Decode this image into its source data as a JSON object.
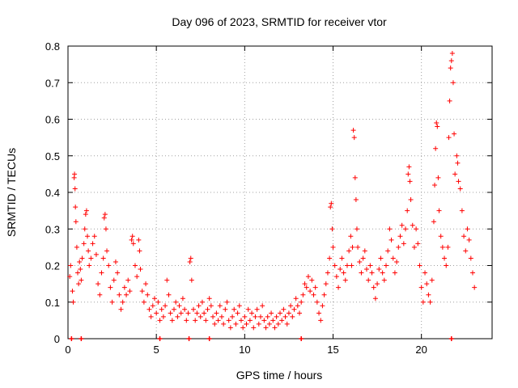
{
  "chart_data": {
    "type": "scatter",
    "title": "Day 096 of 2023, SRMTID for receiver vtor",
    "xlabel": "GPS time / hours",
    "ylabel": "SRMTID / TECUs",
    "xlim": [
      0,
      24
    ],
    "ylim": [
      0,
      0.8
    ],
    "grid": true,
    "marker": "+",
    "color": "#ff0000",
    "x_ticks": [
      0,
      5,
      10,
      15,
      20
    ],
    "x_tick_labels": [
      "0",
      "5",
      "10",
      "15",
      "20"
    ],
    "y_ticks": [
      0,
      0.1,
      0.2,
      0.3,
      0.4,
      0.5,
      0.6,
      0.7,
      0.8
    ],
    "y_tick_labels": [
      "0",
      "0.1",
      "0.2",
      "0.3",
      "0.4",
      "0.5",
      "0.6",
      "0.7",
      "0.8"
    ],
    "series": [
      {
        "name": "SRMTID",
        "points": [
          [
            0.1,
            0.17
          ],
          [
            0.15,
            0.2
          ],
          [
            0.25,
            0.13
          ],
          [
            0.3,
            0.1
          ],
          [
            0.35,
            0.44
          ],
          [
            0.37,
            0.45
          ],
          [
            0.4,
            0.41
          ],
          [
            0.42,
            0.36
          ],
          [
            0.45,
            0.32
          ],
          [
            0.5,
            0.25
          ],
          [
            0.55,
            0.18
          ],
          [
            0.6,
            0.15
          ],
          [
            0.65,
            0.21
          ],
          [
            0.7,
            0.19
          ],
          [
            0.75,
            0.16
          ],
          [
            0.8,
            0.22
          ],
          [
            0.9,
            0.26
          ],
          [
            0.95,
            0.3
          ],
          [
            1.0,
            0.34
          ],
          [
            1.05,
            0.35
          ],
          [
            1.1,
            0.28
          ],
          [
            1.15,
            0.24
          ],
          [
            1.2,
            0.2
          ],
          [
            1.3,
            0.22
          ],
          [
            1.4,
            0.26
          ],
          [
            1.5,
            0.28
          ],
          [
            1.6,
            0.23
          ],
          [
            1.7,
            0.15
          ],
          [
            1.8,
            0.12
          ],
          [
            1.9,
            0.18
          ],
          [
            2.0,
            0.22
          ],
          [
            2.05,
            0.33
          ],
          [
            2.1,
            0.34
          ],
          [
            2.15,
            0.3
          ],
          [
            2.2,
            0.24
          ],
          [
            2.3,
            0.2
          ],
          [
            2.4,
            0.14
          ],
          [
            2.5,
            0.1
          ],
          [
            2.6,
            0.16
          ],
          [
            2.7,
            0.21
          ],
          [
            2.8,
            0.18
          ],
          [
            2.9,
            0.12
          ],
          [
            3.0,
            0.08
          ],
          [
            3.1,
            0.1
          ],
          [
            3.2,
            0.14
          ],
          [
            3.3,
            0.12
          ],
          [
            3.4,
            0.16
          ],
          [
            3.5,
            0.13
          ],
          [
            3.6,
            0.27
          ],
          [
            3.65,
            0.28
          ],
          [
            3.7,
            0.26
          ],
          [
            3.8,
            0.2
          ],
          [
            3.9,
            0.17
          ],
          [
            4.0,
            0.27
          ],
          [
            4.05,
            0.24
          ],
          [
            4.1,
            0.19
          ],
          [
            4.2,
            0.13
          ],
          [
            4.3,
            0.1
          ],
          [
            4.4,
            0.15
          ],
          [
            4.5,
            0.12
          ],
          [
            4.6,
            0.08
          ],
          [
            4.7,
            0.06
          ],
          [
            4.8,
            0.09
          ],
          [
            4.9,
            0.11
          ],
          [
            5.0,
            0.07
          ],
          [
            5.1,
            0.1
          ],
          [
            5.2,
            0.05
          ],
          [
            5.3,
            0.08
          ],
          [
            5.4,
            0.06
          ],
          [
            5.5,
            0.09
          ],
          [
            5.6,
            0.16
          ],
          [
            5.7,
            0.12
          ],
          [
            5.8,
            0.07
          ],
          [
            5.9,
            0.05
          ],
          [
            6.0,
            0.08
          ],
          [
            6.1,
            0.1
          ],
          [
            6.2,
            0.06
          ],
          [
            6.3,
            0.09
          ],
          [
            6.4,
            0.07
          ],
          [
            6.5,
            0.11
          ],
          [
            6.6,
            0.08
          ],
          [
            6.7,
            0.05
          ],
          [
            6.8,
            0.07
          ],
          [
            6.9,
            0.21
          ],
          [
            6.95,
            0.22
          ],
          [
            7.0,
            0.16
          ],
          [
            7.1,
            0.08
          ],
          [
            7.2,
            0.05
          ],
          [
            7.3,
            0.07
          ],
          [
            7.4,
            0.09
          ],
          [
            7.5,
            0.06
          ],
          [
            7.6,
            0.1
          ],
          [
            7.7,
            0.07
          ],
          [
            7.8,
            0.05
          ],
          [
            7.9,
            0.08
          ],
          [
            8.0,
            0.11
          ],
          [
            8.1,
            0.09
          ],
          [
            8.2,
            0.06
          ],
          [
            8.3,
            0.04
          ],
          [
            8.4,
            0.07
          ],
          [
            8.5,
            0.05
          ],
          [
            8.6,
            0.09
          ],
          [
            8.7,
            0.06
          ],
          [
            8.8,
            0.04
          ],
          [
            8.9,
            0.08
          ],
          [
            9.0,
            0.1
          ],
          [
            9.1,
            0.05
          ],
          [
            9.2,
            0.03
          ],
          [
            9.3,
            0.06
          ],
          [
            9.4,
            0.08
          ],
          [
            9.5,
            0.04
          ],
          [
            9.6,
            0.07
          ],
          [
            9.7,
            0.09
          ],
          [
            9.8,
            0.05
          ],
          [
            9.9,
            0.03
          ],
          [
            10.0,
            0.06
          ],
          [
            10.1,
            0.04
          ],
          [
            10.2,
            0.08
          ],
          [
            10.3,
            0.05
          ],
          [
            10.4,
            0.07
          ],
          [
            10.5,
            0.03
          ],
          [
            10.6,
            0.06
          ],
          [
            10.7,
            0.08
          ],
          [
            10.8,
            0.04
          ],
          [
            10.9,
            0.06
          ],
          [
            11.0,
            0.09
          ],
          [
            11.1,
            0.05
          ],
          [
            11.2,
            0.03
          ],
          [
            11.3,
            0.06
          ],
          [
            11.4,
            0.04
          ],
          [
            11.5,
            0.07
          ],
          [
            11.6,
            0.05
          ],
          [
            11.7,
            0.03
          ],
          [
            11.8,
            0.06
          ],
          [
            11.9,
            0.04
          ],
          [
            12.0,
            0.07
          ],
          [
            12.1,
            0.05
          ],
          [
            12.2,
            0.08
          ],
          [
            12.3,
            0.06
          ],
          [
            12.4,
            0.04
          ],
          [
            12.5,
            0.07
          ],
          [
            12.6,
            0.09
          ],
          [
            12.7,
            0.06
          ],
          [
            12.8,
            0.08
          ],
          [
            12.9,
            0.11
          ],
          [
            13.0,
            0.09
          ],
          [
            13.1,
            0.07
          ],
          [
            13.2,
            0.1
          ],
          [
            13.3,
            0.12
          ],
          [
            13.4,
            0.15
          ],
          [
            13.5,
            0.14
          ],
          [
            13.6,
            0.17
          ],
          [
            13.7,
            0.13
          ],
          [
            13.8,
            0.16
          ],
          [
            13.9,
            0.12
          ],
          [
            14.0,
            0.14
          ],
          [
            14.1,
            0.1
          ],
          [
            14.2,
            0.07
          ],
          [
            14.3,
            0.05
          ],
          [
            14.4,
            0.09
          ],
          [
            14.5,
            0.12
          ],
          [
            14.6,
            0.15
          ],
          [
            14.7,
            0.18
          ],
          [
            14.8,
            0.22
          ],
          [
            14.85,
            0.36
          ],
          [
            14.9,
            0.37
          ],
          [
            14.95,
            0.3
          ],
          [
            15.0,
            0.25
          ],
          [
            15.1,
            0.2
          ],
          [
            15.2,
            0.17
          ],
          [
            15.3,
            0.14
          ],
          [
            15.4,
            0.19
          ],
          [
            15.5,
            0.22
          ],
          [
            15.6,
            0.18
          ],
          [
            15.7,
            0.16
          ],
          [
            15.8,
            0.2
          ],
          [
            15.9,
            0.24
          ],
          [
            16.0,
            0.28
          ],
          [
            16.05,
            0.2
          ],
          [
            16.1,
            0.25
          ],
          [
            16.15,
            0.57
          ],
          [
            16.2,
            0.55
          ],
          [
            16.25,
            0.44
          ],
          [
            16.3,
            0.38
          ],
          [
            16.35,
            0.3
          ],
          [
            16.4,
            0.25
          ],
          [
            16.5,
            0.21
          ],
          [
            16.6,
            0.18
          ],
          [
            16.7,
            0.22
          ],
          [
            16.8,
            0.24
          ],
          [
            16.9,
            0.19
          ],
          [
            17.0,
            0.16
          ],
          [
            17.1,
            0.2
          ],
          [
            17.2,
            0.18
          ],
          [
            17.3,
            0.14
          ],
          [
            17.4,
            0.11
          ],
          [
            17.5,
            0.15
          ],
          [
            17.6,
            0.19
          ],
          [
            17.7,
            0.22
          ],
          [
            17.8,
            0.18
          ],
          [
            17.9,
            0.16
          ],
          [
            18.0,
            0.2
          ],
          [
            18.1,
            0.24
          ],
          [
            18.2,
            0.3
          ],
          [
            18.3,
            0.27
          ],
          [
            18.4,
            0.22
          ],
          [
            18.5,
            0.18
          ],
          [
            18.6,
            0.21
          ],
          [
            18.7,
            0.25
          ],
          [
            18.8,
            0.28
          ],
          [
            18.9,
            0.31
          ],
          [
            19.0,
            0.26
          ],
          [
            19.1,
            0.3
          ],
          [
            19.2,
            0.35
          ],
          [
            19.25,
            0.45
          ],
          [
            19.3,
            0.47
          ],
          [
            19.35,
            0.43
          ],
          [
            19.4,
            0.38
          ],
          [
            19.5,
            0.31
          ],
          [
            19.6,
            0.25
          ],
          [
            19.7,
            0.3
          ],
          [
            19.8,
            0.26
          ],
          [
            19.9,
            0.2
          ],
          [
            20.0,
            0.14
          ],
          [
            20.1,
            0.1
          ],
          [
            20.2,
            0.18
          ],
          [
            20.3,
            0.15
          ],
          [
            20.4,
            0.12
          ],
          [
            20.5,
            0.1
          ],
          [
            20.6,
            0.16
          ],
          [
            20.7,
            0.32
          ],
          [
            20.75,
            0.42
          ],
          [
            20.8,
            0.52
          ],
          [
            20.85,
            0.59
          ],
          [
            20.9,
            0.58
          ],
          [
            20.95,
            0.44
          ],
          [
            21.0,
            0.35
          ],
          [
            21.1,
            0.28
          ],
          [
            21.2,
            0.25
          ],
          [
            21.3,
            0.22
          ],
          [
            21.4,
            0.2
          ],
          [
            21.5,
            0.25
          ],
          [
            21.55,
            0.55
          ],
          [
            21.6,
            0.65
          ],
          [
            21.65,
            0.74
          ],
          [
            21.7,
            0.76
          ],
          [
            21.75,
            0.78
          ],
          [
            21.8,
            0.7
          ],
          [
            21.85,
            0.56
          ],
          [
            21.9,
            0.45
          ],
          [
            22.0,
            0.5
          ],
          [
            22.05,
            0.48
          ],
          [
            22.1,
            0.43
          ],
          [
            22.2,
            0.41
          ],
          [
            22.3,
            0.35
          ],
          [
            22.4,
            0.28
          ],
          [
            22.5,
            0.24
          ],
          [
            22.6,
            0.3
          ],
          [
            22.7,
            0.27
          ],
          [
            22.8,
            0.22
          ],
          [
            22.9,
            0.18
          ],
          [
            23.0,
            0.14
          ]
        ]
      }
    ],
    "baseline_markers_x": [
      0.2,
      0.75,
      5.2,
      6.85,
      8.0,
      13.2,
      21.7
    ]
  }
}
